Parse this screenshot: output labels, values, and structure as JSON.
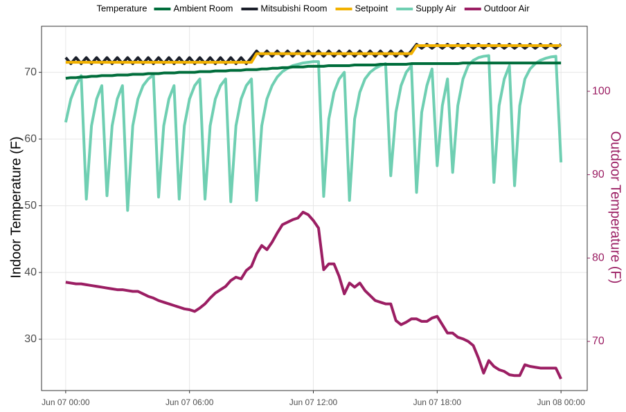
{
  "chart_data": {
    "type": "line",
    "legend_title": "Temperature",
    "legend_position": "top",
    "grid": true,
    "y_label": "Indoor Temperature (F)",
    "y2_label": "Outdoor Temperature (F)",
    "y2_color": "#9b1e63",
    "xlim": [
      -1.17,
      25.27
    ],
    "xticks": [
      {
        "value": 0,
        "label": "Jun 07 00:00"
      },
      {
        "value": 6,
        "label": "Jun 07 06:00"
      },
      {
        "value": 12,
        "label": "Jun 07 12:00"
      },
      {
        "value": 18,
        "label": "Jun 07 18:00"
      },
      {
        "value": 24,
        "label": "Jun 08 00:00"
      }
    ],
    "ylim": [
      22.3,
      76.9
    ],
    "yticks": [
      30,
      40,
      50,
      60,
      70
    ],
    "y2lim": [
      64.1,
      107.8
    ],
    "y2ticks": [
      70,
      80,
      90,
      100
    ],
    "x": [
      0,
      0.25,
      0.5,
      0.75,
      1,
      1.25,
      1.5,
      1.75,
      2,
      2.25,
      2.5,
      2.75,
      3,
      3.25,
      3.5,
      3.75,
      4,
      4.25,
      4.5,
      4.75,
      5,
      5.25,
      5.5,
      5.75,
      6,
      6.25,
      6.5,
      6.75,
      7,
      7.25,
      7.5,
      7.75,
      8,
      8.25,
      8.5,
      8.75,
      9,
      9.25,
      9.5,
      9.75,
      10,
      10.25,
      10.5,
      10.75,
      11,
      11.25,
      11.5,
      11.75,
      12,
      12.25,
      12.5,
      12.75,
      13,
      13.25,
      13.5,
      13.75,
      14,
      14.25,
      14.5,
      14.75,
      15,
      15.25,
      15.5,
      15.75,
      16,
      16.25,
      16.5,
      16.75,
      17,
      17.25,
      17.5,
      17.75,
      18,
      18.25,
      18.5,
      18.75,
      19,
      19.25,
      19.5,
      19.75,
      20,
      20.25,
      20.5,
      20.75,
      21,
      21.25,
      21.5,
      21.75,
      22,
      22.25,
      22.5,
      22.75,
      23,
      23.25,
      23.5,
      23.75,
      24
    ],
    "series": [
      {
        "name": "Supply Air",
        "color": "#6fcfb2",
        "axis": "y",
        "values": [
          62.5,
          66,
          68,
          69.5,
          51,
          62,
          66,
          68,
          51.5,
          62,
          66,
          68,
          49.3,
          62,
          66,
          68,
          69,
          69.6,
          51.3,
          62,
          66,
          68,
          51,
          62,
          66,
          68,
          69,
          51,
          62,
          66,
          68,
          69,
          50.6,
          62,
          66,
          68,
          69,
          50.8,
          62,
          66,
          68,
          69.3,
          70.1,
          70.6,
          71,
          71.2,
          71.4,
          71.5,
          71.6,
          71.6,
          51.4,
          63,
          67,
          69,
          70,
          50.8,
          63,
          67,
          69,
          70,
          70.6,
          71,
          71.3,
          54.5,
          64,
          68,
          70,
          71,
          52,
          64,
          68,
          70.5,
          56,
          65,
          69,
          55,
          65,
          69,
          71,
          71.8,
          72.2,
          72.4,
          72.5,
          53.5,
          65,
          69,
          71,
          53,
          65,
          69,
          70.5,
          71.3,
          71.8,
          72.1,
          72.3,
          72.4,
          56.5
        ]
      },
      {
        "name": "Ambient Room",
        "color": "#006d3b",
        "axis": "y",
        "values": [
          69.1,
          69.2,
          69.2,
          69.3,
          69.3,
          69.4,
          69.4,
          69.5,
          69.5,
          69.5,
          69.6,
          69.6,
          69.6,
          69.7,
          69.7,
          69.7,
          69.8,
          69.8,
          69.8,
          69.9,
          69.9,
          69.9,
          70.0,
          70.0,
          70.0,
          70.0,
          70.1,
          70.1,
          70.1,
          70.2,
          70.2,
          70.2,
          70.3,
          70.3,
          70.3,
          70.4,
          70.4,
          70.4,
          70.5,
          70.5,
          70.6,
          70.6,
          70.7,
          70.7,
          70.8,
          70.8,
          70.8,
          70.9,
          70.9,
          70.9,
          70.9,
          71.0,
          71.0,
          71.0,
          71.0,
          71.0,
          71.1,
          71.1,
          71.1,
          71.1,
          71.1,
          71.2,
          71.2,
          71.2,
          71.2,
          71.2,
          71.2,
          71.3,
          71.3,
          71.3,
          71.3,
          71.3,
          71.3,
          71.3,
          71.3,
          71.3,
          71.3,
          71.4,
          71.4,
          71.4,
          71.4,
          71.4,
          71.4,
          71.4,
          71.4,
          71.4,
          71.4,
          71.4,
          71.4,
          71.4,
          71.4,
          71.4,
          71.4,
          71.4,
          71.4,
          71.4,
          71.4
        ]
      },
      {
        "name": "Mitsubishi Room",
        "color": "#1b1f2a",
        "axis": "y",
        "values": [
          72.2,
          71.3,
          72.2,
          71.3,
          72.2,
          71.3,
          72.2,
          71.3,
          72.2,
          71.3,
          72.2,
          71.3,
          72.2,
          71.3,
          72.2,
          71.3,
          72.2,
          71.3,
          72.2,
          71.3,
          72.2,
          71.3,
          72.2,
          71.3,
          72.2,
          71.3,
          72.2,
          71.3,
          72.2,
          71.3,
          72.2,
          71.3,
          72.2,
          71.3,
          72.2,
          71.3,
          72.2,
          73.2,
          72.4,
          73.2,
          72.4,
          73.2,
          72.4,
          73.2,
          72.4,
          73.2,
          72.4,
          73.2,
          72.4,
          73.2,
          72.4,
          73.2,
          72.4,
          73.2,
          72.4,
          73.2,
          72.4,
          73.2,
          72.4,
          73.2,
          72.4,
          73.2,
          72.4,
          73.2,
          72.4,
          73.2,
          72.4,
          73.2,
          74.2,
          73.6,
          74.2,
          73.6,
          74.2,
          73.6,
          74.2,
          73.6,
          74.2,
          73.6,
          74.2,
          73.6,
          74.2,
          73.6,
          74.2,
          73.6,
          74.2,
          73.6,
          74.2,
          73.6,
          74.2,
          73.6,
          74.2,
          73.6,
          74.2,
          73.6,
          74.2,
          73.6,
          74.2
        ]
      },
      {
        "name": "Setpoint",
        "color": "#f2b100",
        "axis": "y",
        "values": [
          71.5,
          71.5,
          71.5,
          71.5,
          71.5,
          71.5,
          71.5,
          71.5,
          71.5,
          71.5,
          71.5,
          71.5,
          71.5,
          71.5,
          71.5,
          71.5,
          71.5,
          71.5,
          71.5,
          71.5,
          71.5,
          71.5,
          71.5,
          71.5,
          71.5,
          71.5,
          71.5,
          71.5,
          71.5,
          71.5,
          71.5,
          71.5,
          71.5,
          71.5,
          71.5,
          71.5,
          71.5,
          72.8,
          72.8,
          72.8,
          72.8,
          72.8,
          72.8,
          72.8,
          72.8,
          72.8,
          72.8,
          72.8,
          72.8,
          72.8,
          72.8,
          72.8,
          72.8,
          72.8,
          72.8,
          72.8,
          72.8,
          72.8,
          72.8,
          72.8,
          72.8,
          72.8,
          72.8,
          72.8,
          72.8,
          72.8,
          72.8,
          72.8,
          74.0,
          74.0,
          74.0,
          74.0,
          74.0,
          74.0,
          74.0,
          74.0,
          74.0,
          74.0,
          74.0,
          74.0,
          74.0,
          74.0,
          74.0,
          74.0,
          74.0,
          74.0,
          74.0,
          74.0,
          74.0,
          74.0,
          74.0,
          74.0,
          74.0,
          74.0,
          74.0,
          74.0,
          74.0
        ]
      },
      {
        "name": "Outdoor Air",
        "color": "#9b1e63",
        "axis": "y2",
        "values": [
          77.1,
          77.0,
          76.9,
          76.9,
          76.8,
          76.7,
          76.6,
          76.5,
          76.4,
          76.3,
          76.2,
          76.2,
          76.1,
          76.0,
          76.0,
          75.7,
          75.4,
          75.2,
          74.9,
          74.7,
          74.5,
          74.3,
          74.1,
          73.9,
          73.8,
          73.6,
          74.0,
          74.5,
          75.2,
          75.8,
          76.2,
          76.6,
          77.3,
          77.7,
          77.5,
          78.5,
          79.0,
          80.5,
          81.5,
          81.0,
          81.9,
          83.0,
          84.0,
          84.3,
          84.6,
          84.8,
          85.5,
          85.2,
          84.5,
          83.6,
          78.6,
          79.3,
          79.3,
          77.8,
          75.7,
          77.0,
          76.5,
          77.0,
          76.1,
          75.5,
          74.9,
          74.7,
          74.5,
          74.5,
          72.5,
          72.0,
          72.3,
          72.7,
          72.7,
          72.4,
          72.4,
          72.8,
          73.0,
          72.0,
          71.0,
          71.0,
          70.5,
          70.3,
          70.0,
          69.5,
          68.0,
          66.2,
          67.7,
          67.0,
          66.6,
          66.4,
          66.0,
          65.9,
          65.9,
          67.2,
          67.0,
          66.9,
          66.8,
          66.8,
          66.8,
          66.8,
          65.5
        ]
      }
    ],
    "legend_order": [
      1,
      2,
      3,
      0,
      4
    ]
  }
}
